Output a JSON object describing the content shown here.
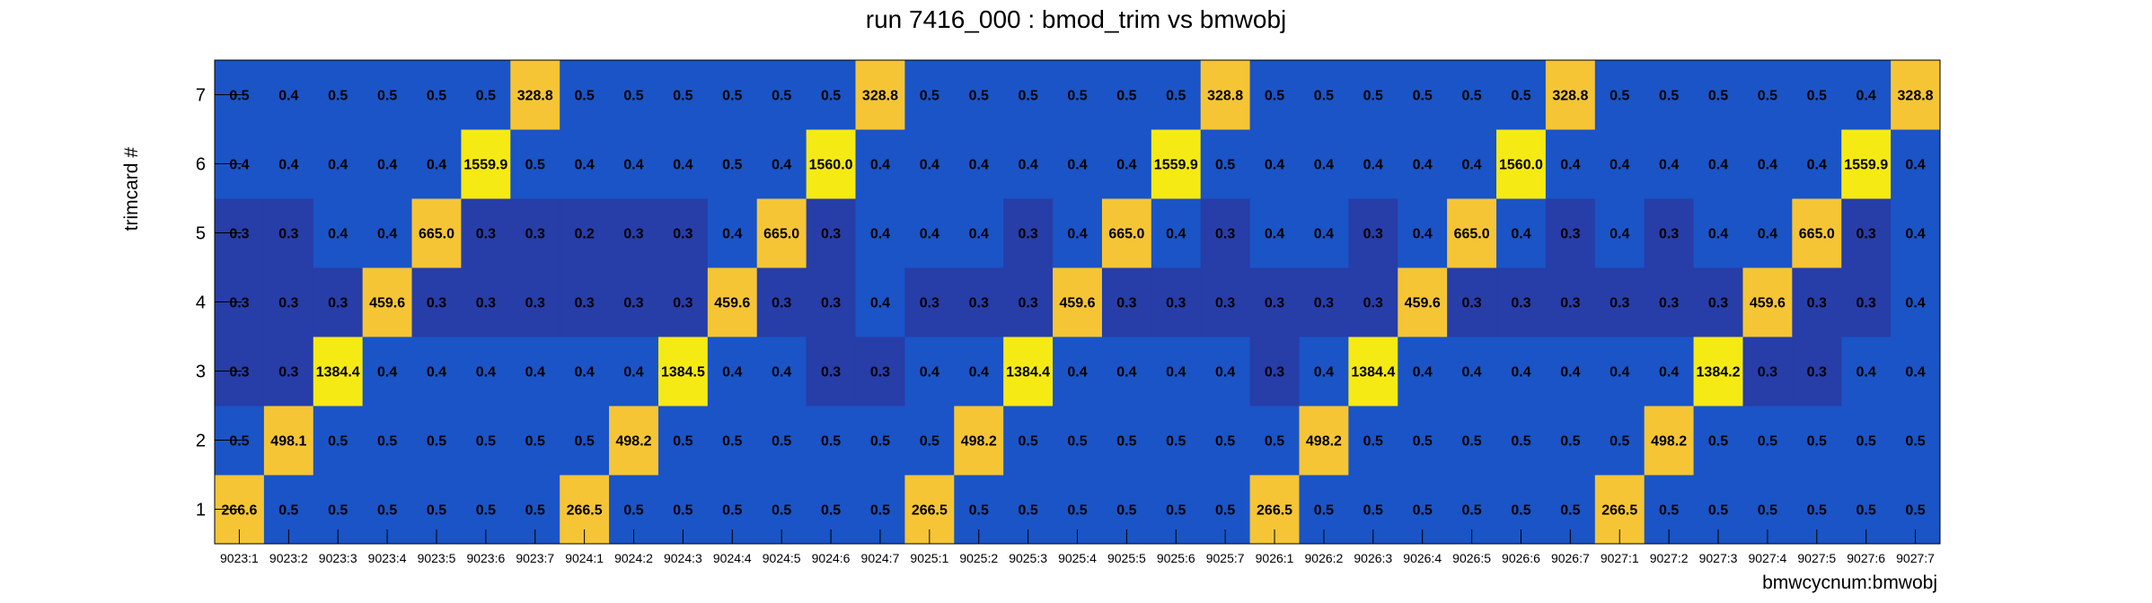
{
  "chart_data": {
    "type": "heatmap",
    "title": "run 7416_000 : bmod_trim vs bmwobj",
    "xlabel": "bmwcycnum:bmwobj",
    "ylabel": "trimcard #",
    "x_categories": [
      "9023:1",
      "9023:2",
      "9023:3",
      "9023:4",
      "9023:5",
      "9023:6",
      "9023:7",
      "9024:1",
      "9024:2",
      "9024:3",
      "9024:4",
      "9024:5",
      "9024:6",
      "9024:7",
      "9025:1",
      "9025:2",
      "9025:3",
      "9025:4",
      "9025:5",
      "9025:6",
      "9025:7",
      "9026:1",
      "9026:2",
      "9026:3",
      "9026:4",
      "9026:5",
      "9026:6",
      "9026:7",
      "9027:1",
      "9027:2",
      "9027:3",
      "9027:4",
      "9027:5",
      "9027:6",
      "9027:7"
    ],
    "y_categories": [
      "1",
      "2",
      "3",
      "4",
      "5",
      "6",
      "7"
    ],
    "values": [
      [
        "266.6",
        "0.5",
        "0.5",
        "0.5",
        "0.5",
        "0.5",
        "0.5",
        "266.5",
        "0.5",
        "0.5",
        "0.5",
        "0.5",
        "0.5",
        "0.5",
        "266.5",
        "0.5",
        "0.5",
        "0.5",
        "0.5",
        "0.5",
        "0.5",
        "266.5",
        "0.5",
        "0.5",
        "0.5",
        "0.5",
        "0.5",
        "0.5",
        "266.5",
        "0.5",
        "0.5",
        "0.5",
        "0.5",
        "0.5",
        "0.5"
      ],
      [
        "0.5",
        "498.1",
        "0.5",
        "0.5",
        "0.5",
        "0.5",
        "0.5",
        "0.5",
        "498.2",
        "0.5",
        "0.5",
        "0.5",
        "0.5",
        "0.5",
        "0.5",
        "498.2",
        "0.5",
        "0.5",
        "0.5",
        "0.5",
        "0.5",
        "0.5",
        "498.2",
        "0.5",
        "0.5",
        "0.5",
        "0.5",
        "0.5",
        "0.5",
        "498.2",
        "0.5",
        "0.5",
        "0.5",
        "0.5",
        "0.5"
      ],
      [
        "0.3",
        "0.3",
        "1384.4",
        "0.4",
        "0.4",
        "0.4",
        "0.4",
        "0.4",
        "0.4",
        "1384.5",
        "0.4",
        "0.4",
        "0.3",
        "0.3",
        "0.4",
        "0.4",
        "1384.4",
        "0.4",
        "0.4",
        "0.4",
        "0.4",
        "0.3",
        "0.4",
        "1384.4",
        "0.4",
        "0.4",
        "0.4",
        "0.4",
        "0.4",
        "0.4",
        "1384.2",
        "0.3",
        "0.3",
        "0.4",
        "0.4"
      ],
      [
        "0.3",
        "0.3",
        "0.3",
        "459.6",
        "0.3",
        "0.3",
        "0.3",
        "0.3",
        "0.3",
        "0.3",
        "459.6",
        "0.3",
        "0.3",
        "0.4",
        "0.3",
        "0.3",
        "0.3",
        "459.6",
        "0.3",
        "0.3",
        "0.3",
        "0.3",
        "0.3",
        "0.3",
        "459.6",
        "0.3",
        "0.3",
        "0.3",
        "0.3",
        "0.3",
        "0.3",
        "459.6",
        "0.3",
        "0.3",
        "0.4"
      ],
      [
        "0.3",
        "0.3",
        "0.4",
        "0.4",
        "665.0",
        "0.3",
        "0.3",
        "0.2",
        "0.3",
        "0.3",
        "0.4",
        "665.0",
        "0.3",
        "0.4",
        "0.4",
        "0.4",
        "0.3",
        "0.4",
        "665.0",
        "0.4",
        "0.3",
        "0.4",
        "0.4",
        "0.3",
        "0.4",
        "665.0",
        "0.4",
        "0.3",
        "0.4",
        "0.3",
        "0.4",
        "0.4",
        "665.0",
        "0.3",
        "0.4"
      ],
      [
        "0.4",
        "0.4",
        "0.4",
        "0.4",
        "0.4",
        "1559.9",
        "0.5",
        "0.4",
        "0.4",
        "0.4",
        "0.5",
        "0.4",
        "1560.0",
        "0.4",
        "0.4",
        "0.4",
        "0.4",
        "0.4",
        "0.4",
        "1559.9",
        "0.5",
        "0.4",
        "0.4",
        "0.4",
        "0.4",
        "0.4",
        "1560.0",
        "0.4",
        "0.4",
        "0.4",
        "0.4",
        "0.4",
        "0.4",
        "1559.9",
        "0.4"
      ],
      [
        "0.5",
        "0.4",
        "0.5",
        "0.5",
        "0.5",
        "0.5",
        "328.8",
        "0.5",
        "0.5",
        "0.5",
        "0.5",
        "0.5",
        "0.5",
        "328.8",
        "0.5",
        "0.5",
        "0.5",
        "0.5",
        "0.5",
        "0.5",
        "328.8",
        "0.5",
        "0.5",
        "0.5",
        "0.5",
        "0.5",
        "0.5",
        "328.8",
        "0.5",
        "0.5",
        "0.5",
        "0.5",
        "0.5",
        "0.4",
        "328.8"
      ]
    ],
    "colors": {
      "low_dark": "#273da8",
      "low": "#1a54c6",
      "mid_high": "#f5c535",
      "high": "#f6ea14"
    },
    "grid": false,
    "legend": "none"
  }
}
